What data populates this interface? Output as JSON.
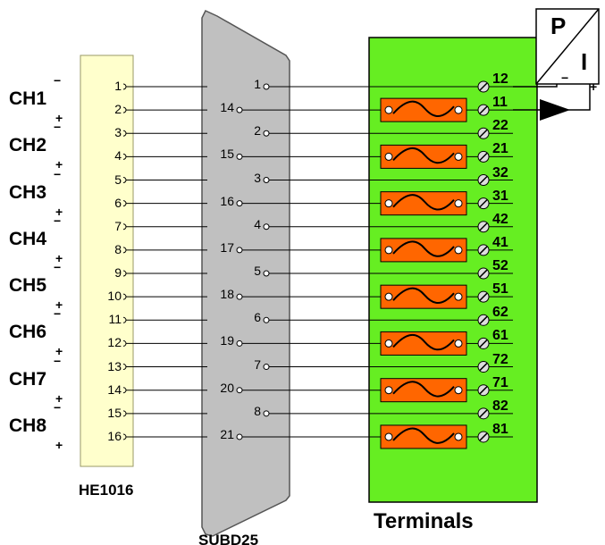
{
  "channels": [
    {
      "label": "CH1"
    },
    {
      "label": "CH2"
    },
    {
      "label": "CH3"
    },
    {
      "label": "CH4"
    },
    {
      "label": "CH5"
    },
    {
      "label": "CH6"
    },
    {
      "label": "CH7"
    },
    {
      "label": "CH8"
    }
  ],
  "signs": {
    "minus": "−",
    "plus": "+"
  },
  "he1016": {
    "caption": "HE1016",
    "pins": [
      "1",
      "2",
      "3",
      "4",
      "5",
      "6",
      "7",
      "8",
      "9",
      "10",
      "11",
      "12",
      "13",
      "14",
      "15",
      "16"
    ]
  },
  "subd25": {
    "caption": "SUBD25",
    "pins": [
      "1",
      "14",
      "2",
      "15",
      "3",
      "16",
      "4",
      "17",
      "5",
      "18",
      "6",
      "19",
      "7",
      "20",
      "8",
      "21"
    ]
  },
  "terminals": {
    "caption": "Terminals",
    "numbers": [
      "12",
      "11",
      "22",
      "21",
      "32",
      "31",
      "42",
      "41",
      "52",
      "51",
      "62",
      "61",
      "72",
      "71",
      "82",
      "81"
    ]
  },
  "converter": {
    "top_letter": "P",
    "bottom_letter": "I",
    "minus": "−",
    "plus": "+"
  },
  "colors": {
    "he1016_fill": "#ffffcc",
    "subd25_fill": "#c0c0c0",
    "terminals_fill": "#66ee22",
    "resistor_fill": "#ff6600",
    "wire": "#000000"
  }
}
